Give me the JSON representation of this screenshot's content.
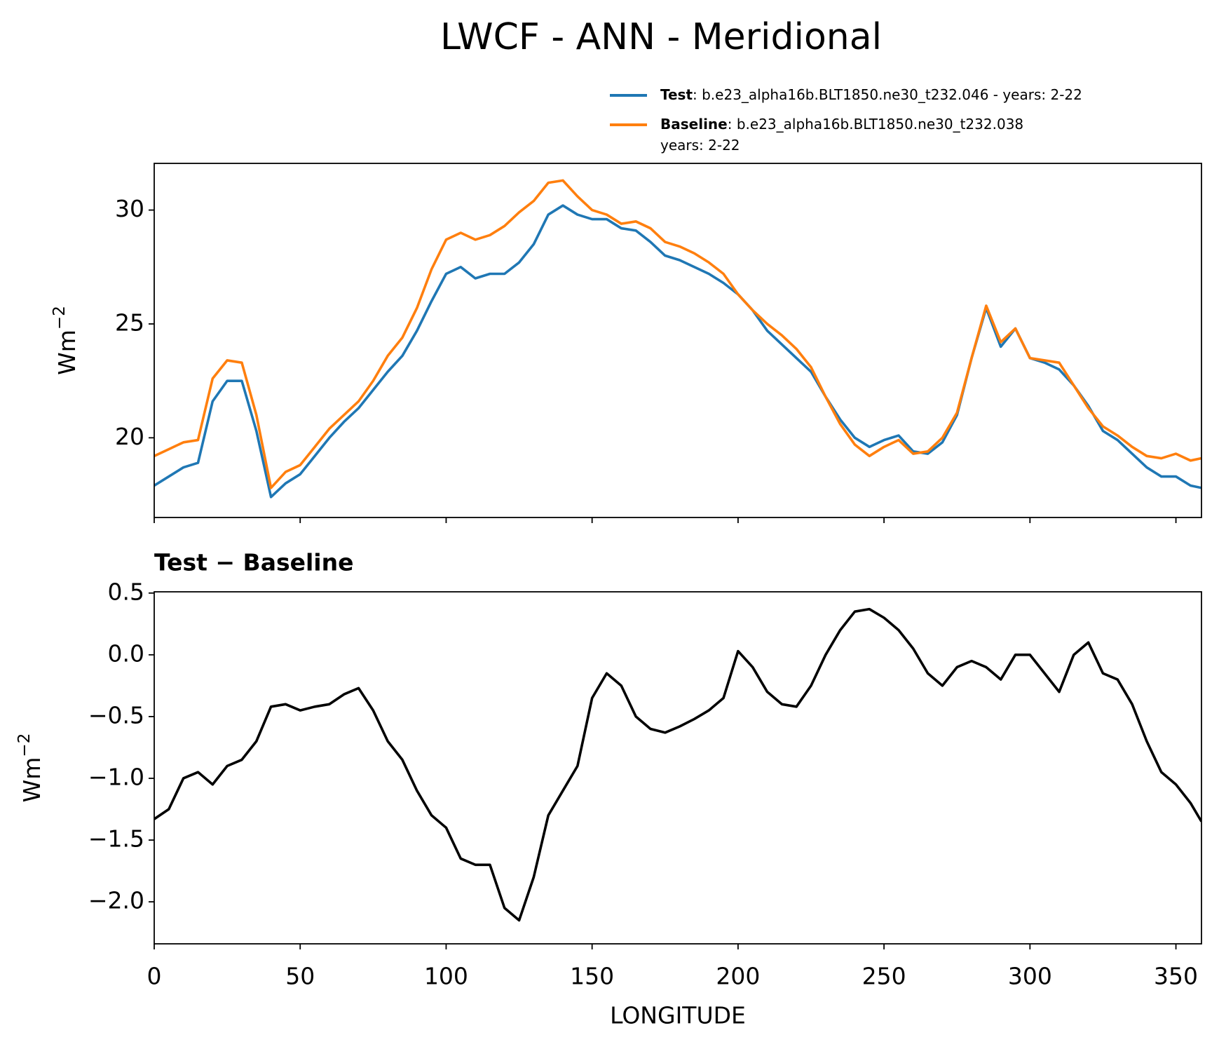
{
  "title": "LWCF - ANN - Meridional",
  "chart_data": [
    {
      "type": "line",
      "ylabel": "Wm",
      "ylabel_sup": "−2",
      "x": [
        0,
        5,
        10,
        15,
        20,
        25,
        30,
        35,
        40,
        45,
        50,
        55,
        60,
        65,
        70,
        75,
        80,
        85,
        90,
        95,
        100,
        105,
        110,
        115,
        120,
        125,
        130,
        135,
        140,
        145,
        150,
        155,
        160,
        165,
        170,
        175,
        180,
        185,
        190,
        195,
        200,
        205,
        210,
        215,
        220,
        225,
        230,
        235,
        240,
        245,
        250,
        255,
        260,
        265,
        270,
        275,
        280,
        285,
        290,
        295,
        300,
        305,
        310,
        315,
        320,
        325,
        330,
        335,
        340,
        345,
        350,
        355,
        358.75
      ],
      "series": [
        {
          "name": "Test",
          "label_lines": [
            ": b.e23_alpha16b.BLT1850.ne30_t232.046 - years: 2-22"
          ],
          "color": "#1f77b4",
          "values": [
            17.9,
            18.3,
            18.7,
            18.9,
            21.6,
            22.5,
            22.5,
            20.3,
            17.4,
            18.0,
            18.4,
            19.2,
            20.0,
            20.7,
            21.3,
            22.1,
            22.9,
            23.6,
            24.7,
            26.0,
            27.2,
            27.5,
            27.0,
            27.2,
            27.2,
            27.7,
            28.5,
            29.8,
            30.2,
            29.8,
            29.6,
            29.6,
            29.2,
            29.1,
            28.6,
            28.0,
            27.8,
            27.5,
            27.2,
            26.8,
            26.3,
            25.6,
            24.7,
            24.1,
            23.5,
            22.9,
            21.8,
            20.8,
            20.0,
            19.6,
            19.9,
            20.1,
            19.4,
            19.3,
            19.8,
            21.0,
            23.5,
            25.7,
            24.0,
            24.8,
            23.5,
            23.3,
            23.0,
            22.3,
            21.4,
            20.3,
            19.9,
            19.3,
            18.7,
            18.3,
            18.3,
            17.9,
            17.8
          ]
        },
        {
          "name": "Baseline",
          "label_lines": [
            ": b.e23_alpha16b.BLT1850.ne30_t232.038",
            "years: 2-22"
          ],
          "color": "#ff7f0e",
          "values": [
            19.2,
            19.5,
            19.8,
            19.9,
            22.6,
            23.4,
            23.3,
            21.0,
            17.8,
            18.5,
            18.8,
            19.6,
            20.4,
            21.0,
            21.6,
            22.5,
            23.6,
            24.4,
            25.7,
            27.4,
            28.7,
            29.0,
            28.7,
            28.9,
            29.3,
            29.9,
            30.4,
            31.2,
            31.3,
            30.6,
            30.0,
            29.8,
            29.4,
            29.5,
            29.2,
            28.6,
            28.4,
            28.1,
            27.7,
            27.2,
            26.3,
            25.6,
            25.0,
            24.5,
            23.9,
            23.1,
            21.8,
            20.6,
            19.7,
            19.2,
            19.6,
            19.9,
            19.3,
            19.4,
            20.0,
            21.1,
            23.5,
            25.8,
            24.2,
            24.8,
            23.5,
            23.4,
            23.3,
            22.3,
            21.3,
            20.5,
            20.1,
            19.6,
            19.2,
            19.1,
            19.3,
            19.0,
            19.1
          ]
        }
      ],
      "xlim": [
        0,
        358.75
      ],
      "xticks": [
        0,
        50,
        100,
        150,
        200,
        250,
        300,
        350
      ],
      "ylim": [
        16.5,
        32.05
      ],
      "yticks": [
        20,
        25,
        30
      ]
    },
    {
      "type": "line",
      "title": "Test − Baseline",
      "ylabel": "Wm",
      "ylabel_sup": "−2",
      "xlabel": "LONGITUDE",
      "x": [
        0,
        5,
        10,
        15,
        20,
        25,
        30,
        35,
        40,
        45,
        50,
        55,
        60,
        65,
        70,
        75,
        80,
        85,
        90,
        95,
        100,
        105,
        110,
        115,
        120,
        125,
        130,
        135,
        140,
        145,
        150,
        155,
        160,
        165,
        170,
        175,
        180,
        185,
        190,
        195,
        200,
        205,
        210,
        215,
        220,
        225,
        230,
        235,
        240,
        245,
        250,
        255,
        260,
        265,
        270,
        275,
        280,
        285,
        290,
        295,
        300,
        305,
        310,
        315,
        320,
        325,
        330,
        335,
        340,
        345,
        350,
        355,
        358.75
      ],
      "series": [
        {
          "color": "#000000",
          "values": [
            -1.33,
            -1.25,
            -1.0,
            -0.95,
            -1.05,
            -0.9,
            -0.85,
            -0.7,
            -0.42,
            -0.4,
            -0.45,
            -0.42,
            -0.4,
            -0.32,
            -0.27,
            -0.45,
            -0.7,
            -0.85,
            -1.1,
            -1.3,
            -1.4,
            -1.65,
            -1.7,
            -1.7,
            -2.05,
            -2.15,
            -1.8,
            -1.3,
            -1.1,
            -0.9,
            -0.35,
            -0.15,
            -0.25,
            -0.5,
            -0.6,
            -0.63,
            -0.58,
            -0.52,
            -0.45,
            -0.35,
            0.03,
            -0.1,
            -0.3,
            -0.4,
            -0.42,
            -0.25,
            0.0,
            0.2,
            0.35,
            0.37,
            0.3,
            0.2,
            0.05,
            -0.15,
            -0.25,
            -0.1,
            -0.05,
            -0.1,
            -0.2,
            0.0,
            0.0,
            -0.15,
            -0.3,
            0.0,
            0.1,
            -0.15,
            -0.2,
            -0.4,
            -0.7,
            -0.95,
            -1.05,
            -1.2,
            -1.35
          ]
        }
      ],
      "xlim": [
        0,
        358.75
      ],
      "xticks": [
        0,
        50,
        100,
        150,
        200,
        250,
        300,
        350
      ],
      "ylim": [
        -2.34,
        0.51
      ],
      "yticks": [
        {
          "value": 0.5,
          "label": "0.5"
        },
        {
          "value": 0,
          "label": "0.0"
        },
        {
          "value": -0.5,
          "label": "−0.5"
        },
        {
          "value": -1,
          "label": "−1.0"
        },
        {
          "value": -1.5,
          "label": "−1.5"
        },
        {
          "value": -2,
          "label": "−2.0"
        }
      ]
    }
  ]
}
